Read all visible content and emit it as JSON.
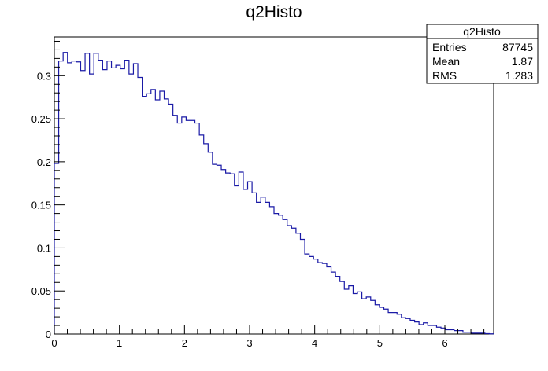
{
  "chart_data": {
    "type": "histogram",
    "title": "q2Histo",
    "xlabel": "",
    "ylabel": "",
    "xlim": [
      0,
      6.75
    ],
    "ylim": [
      0,
      0.345
    ],
    "bin_width": 0.0675,
    "x_ticks": [
      0,
      1,
      2,
      3,
      4,
      5,
      6
    ],
    "x_tick_labels": [
      "0",
      "1",
      "2",
      "3",
      "4",
      "5",
      "6"
    ],
    "y_ticks": [
      0,
      0.05,
      0.1,
      0.15,
      0.2,
      0.25,
      0.3
    ],
    "y_tick_labels": [
      "0",
      "0.05",
      "0.1",
      "0.15",
      "0.2",
      "0.25",
      "0.3"
    ],
    "grid": false,
    "line_color": "#1a1aa6",
    "values": [
      0.198,
      0.317,
      0.327,
      0.315,
      0.317,
      0.316,
      0.306,
      0.326,
      0.302,
      0.326,
      0.318,
      0.307,
      0.317,
      0.309,
      0.312,
      0.308,
      0.318,
      0.302,
      0.314,
      0.298,
      0.276,
      0.279,
      0.284,
      0.272,
      0.282,
      0.273,
      0.267,
      0.254,
      0.245,
      0.252,
      0.248,
      0.248,
      0.245,
      0.231,
      0.221,
      0.211,
      0.197,
      0.196,
      0.191,
      0.187,
      0.186,
      0.172,
      0.188,
      0.168,
      0.177,
      0.164,
      0.153,
      0.159,
      0.153,
      0.148,
      0.14,
      0.138,
      0.133,
      0.126,
      0.123,
      0.117,
      0.11,
      0.093,
      0.09,
      0.087,
      0.083,
      0.082,
      0.078,
      0.072,
      0.067,
      0.061,
      0.052,
      0.056,
      0.047,
      0.049,
      0.041,
      0.043,
      0.039,
      0.034,
      0.031,
      0.029,
      0.025,
      0.025,
      0.023,
      0.019,
      0.018,
      0.016,
      0.014,
      0.011,
      0.013,
      0.01,
      0.01,
      0.008,
      0.007,
      0.005,
      0.005,
      0.004,
      0.004,
      0.002,
      0.002,
      0.001,
      0.001,
      0.001,
      0.0005,
      0.0002
    ],
    "stats": {
      "title": "q2Histo",
      "rows": [
        {
          "label": "Entries",
          "value": "87745"
        },
        {
          "label": "Mean",
          "value": "1.87"
        },
        {
          "label": "RMS",
          "value": "1.283"
        }
      ]
    }
  }
}
